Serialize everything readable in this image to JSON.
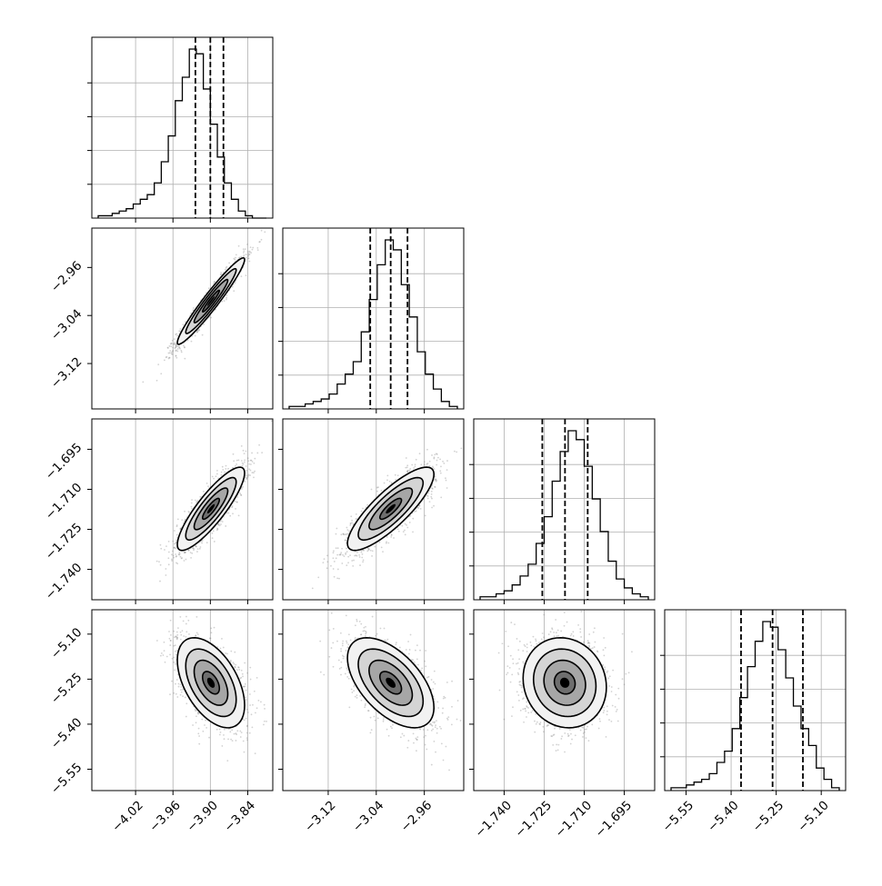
{
  "colors": {
    "frame": "#000000",
    "grid": "#b0b0b0",
    "scatter": "#7f7f7f",
    "hist": "#000000"
  },
  "chart_data": {
    "type": "corner",
    "grid": true,
    "params": [
      {
        "range": [
          -4.08,
          -3.81
        ],
        "ticks": [
          -4.02,
          -3.96,
          -3.9,
          -3.84
        ],
        "tick_labels": [
          "−4.02",
          "−3.96",
          "−3.90",
          "−3.84"
        ],
        "mean": -3.899,
        "sd": 0.027,
        "quantiles": [
          -3.924,
          -3.9,
          -3.879
        ]
      },
      {
        "range": [
          -3.185,
          -2.905
        ],
        "ticks": [
          -3.12,
          -3.04,
          -2.96
        ],
        "tick_labels": [
          "−3.12",
          "−3.04",
          "−2.96"
        ],
        "mean": -3.016,
        "sd": 0.036,
        "quantiles": [
          -3.05,
          -3.016,
          -2.988
        ]
      },
      {
        "range": [
          -1.749,
          -1.686
        ],
        "ticks": [
          -1.74,
          -1.725,
          -1.71,
          -1.695
        ],
        "tick_labels": [
          "−1.740",
          "−1.725",
          "−1.710",
          "−1.695"
        ],
        "mean": -1.7173,
        "sd": 0.0078,
        "quantiles": [
          -1.7257,
          -1.7172,
          -1.7087
        ]
      },
      {
        "range": [
          -5.6,
          -5.04
        ],
        "ticks": [
          -5.55,
          -5.4,
          -5.25,
          -5.1
        ],
        "tick_labels": [
          "−5.55",
          "−5.40",
          "−5.25",
          "−5.10"
        ],
        "mean": -5.262,
        "sd": 0.075,
        "quantiles": [
          -5.367,
          -5.262,
          -5.161
        ]
      }
    ],
    "correlations": {
      "1-0": 0.96,
      "2-0": 0.86,
      "2-1": 0.83,
      "3-0": -0.5,
      "3-1": -0.55,
      "3-2": -0.1
    },
    "histograms": [
      {
        "edges": [
          -4.08,
          -3.81
        ],
        "counts": [
          1,
          1,
          2,
          3,
          4,
          6,
          8,
          10,
          15,
          24,
          35,
          50,
          60,
          72,
          70,
          55,
          40,
          26,
          15,
          8,
          3,
          1,
          0,
          0
        ]
      },
      {
        "edges": [
          -3.185,
          -2.905
        ],
        "counts": [
          1,
          1,
          2,
          3,
          4,
          6,
          10,
          14,
          19,
          31,
          44,
          58,
          68,
          64,
          50,
          37,
          23,
          14,
          8,
          3,
          1
        ]
      },
      {
        "edges": [
          -1.749,
          -1.686
        ],
        "counts": [
          1,
          1,
          2,
          3,
          5,
          8,
          12,
          19,
          28,
          40,
          50,
          57,
          54,
          45,
          34,
          23,
          13,
          7,
          4,
          2,
          1
        ]
      },
      {
        "edges": [
          -5.6,
          -5.04
        ],
        "counts": [
          1,
          1,
          2,
          3,
          4,
          6,
          10,
          14,
          22,
          33,
          44,
          53,
          60,
          58,
          50,
          40,
          30,
          22,
          16,
          8,
          4,
          1
        ]
      }
    ],
    "contour_levels_sigma": [
      0.5,
      1.0,
      1.5,
      2.0
    ],
    "scatter_points_per_panel": 1600
  }
}
